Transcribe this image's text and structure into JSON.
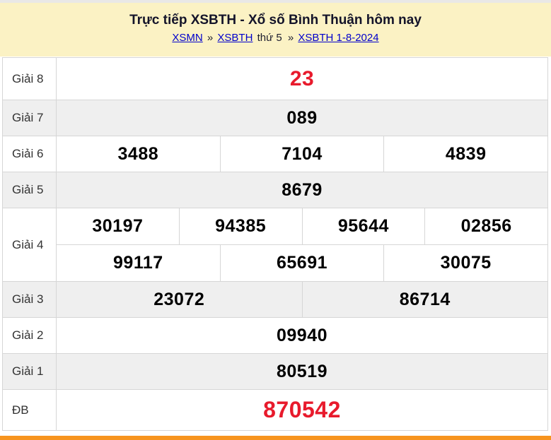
{
  "header": {
    "title": "Trực tiếp XSBTH - Xổ số Bình Thuận hôm nay",
    "breadcrumb": {
      "link_xsmn": "XSMN",
      "sep1": "»",
      "link_xsbth": "XSBTH",
      "plain_text": "thứ 5",
      "sep2": "»",
      "link_date": "XSBTH 1-8-2024"
    }
  },
  "table": {
    "rows": [
      {
        "label": "Giải 8",
        "values": [
          "23"
        ]
      },
      {
        "label": "Giải 7",
        "values": [
          "089"
        ]
      },
      {
        "label": "Giải 6",
        "values": [
          "3488",
          "7104",
          "4839"
        ]
      },
      {
        "label": "Giải 5",
        "values": [
          "8679"
        ]
      },
      {
        "label": "Giải 4",
        "lines": [
          [
            "30197",
            "94385",
            "95644",
            "02856"
          ],
          [
            "99117",
            "65691",
            "30075"
          ]
        ]
      },
      {
        "label": "Giải 3",
        "values": [
          "23072",
          "86714"
        ]
      },
      {
        "label": "Giải 2",
        "values": [
          "09940"
        ]
      },
      {
        "label": "Giải 1",
        "values": [
          "80519"
        ]
      },
      {
        "label": "ĐB",
        "values": [
          "870542"
        ]
      }
    ]
  },
  "colors": {
    "header_background": "#fbf2c4",
    "highlight_red": "#e81a2c",
    "link_blue": "#0000cc",
    "row_alt_gray": "#efefef",
    "border_gray": "#d6d6d6",
    "bottom_bar_orange": "#f7941e"
  }
}
